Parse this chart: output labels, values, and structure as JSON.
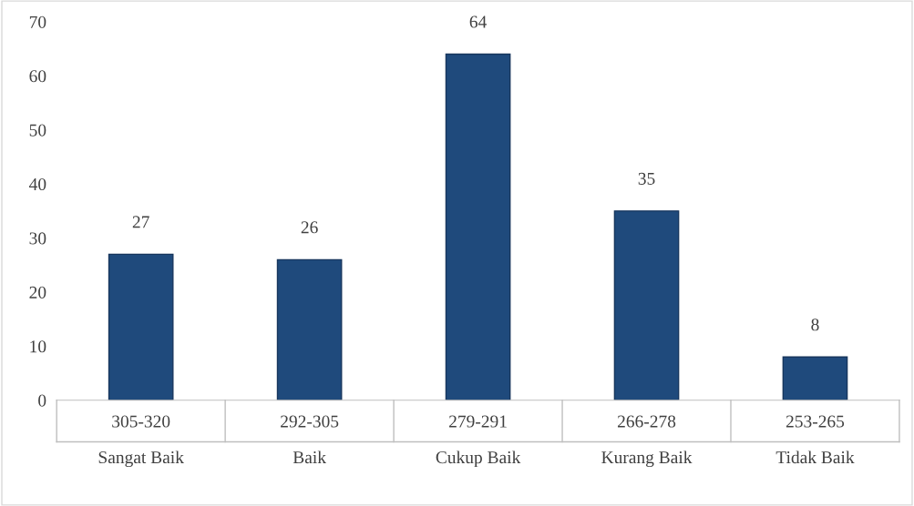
{
  "chart_data": {
    "type": "bar",
    "categories": [
      "305-320\nSangat Baik",
      "292-305\nBaik",
      "279-291\nCukup Baik",
      "266-278\nKurang Baik",
      "253-265\nTidak Baik"
    ],
    "values": [
      27,
      26,
      64,
      35,
      8
    ],
    "color": "#1f4a7c",
    "ylim": [
      0,
      70
    ],
    "yticks": [
      0,
      10,
      20,
      30,
      40,
      50,
      60,
      70
    ],
    "grid": false,
    "data_labels": true
  }
}
